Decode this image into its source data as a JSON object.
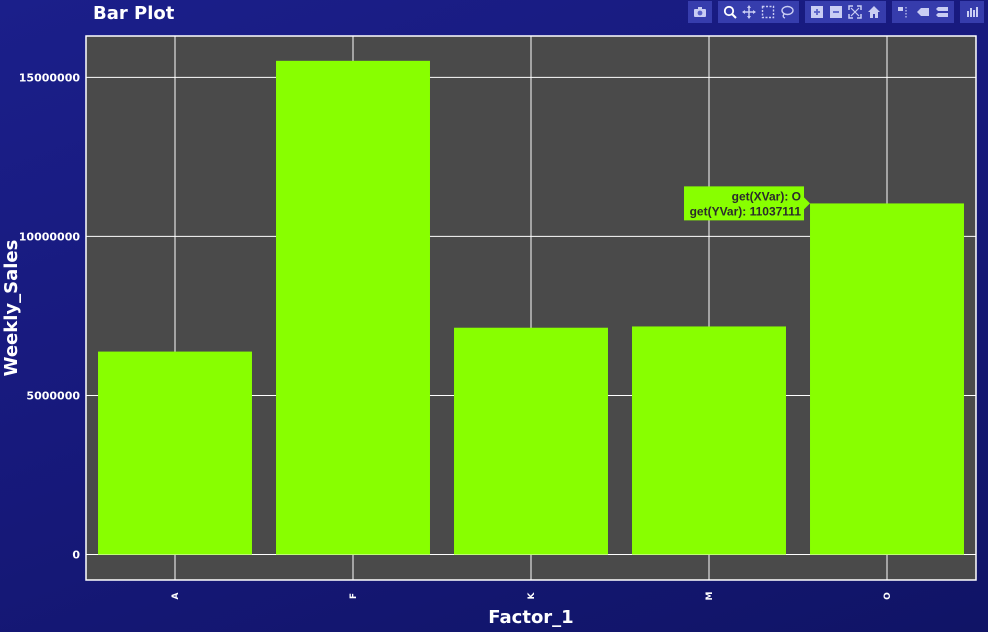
{
  "chart_data": {
    "type": "bar",
    "title": "Bar Plot",
    "xlabel": "Factor_1",
    "ylabel": "Weekly_Sales",
    "categories": [
      "A",
      "F",
      "K",
      "M",
      "O"
    ],
    "values": [
      6380000,
      15520000,
      7130000,
      7170000,
      11037111
    ],
    "ylim": [
      -800000,
      16300000
    ],
    "yticks": [
      0,
      5000000,
      10000000,
      15000000
    ],
    "ytick_labels": [
      "0",
      "5000000",
      "10000000",
      "15000000"
    ],
    "grid": true,
    "bar_color": "#88ff00",
    "plot_bg": "#4a4a4a"
  },
  "tooltip": {
    "category_index": 4,
    "line1": "get(XVar): O",
    "line2": "get(YVar): 11037111"
  },
  "modebar": {
    "groups": [
      [
        "camera-icon"
      ],
      [
        "zoom-icon",
        "pan-icon",
        "box-select-icon",
        "lasso-select-icon"
      ],
      [
        "zoom-in-icon",
        "zoom-out-icon",
        "autoscale-icon",
        "reset-axes-icon"
      ],
      [
        "spike-lines-icon",
        "hover-closest-icon",
        "hover-compare-icon"
      ],
      [
        "plotly-logo-icon"
      ]
    ]
  }
}
